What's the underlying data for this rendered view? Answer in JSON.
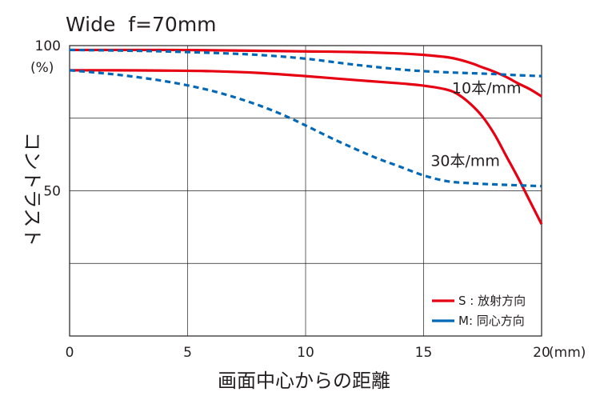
{
  "chart_data": {
    "type": "line",
    "title": "Wide  f=70mm",
    "xlabel": "画面中心からの距離",
    "ylabel": "コントラスト",
    "x_unit": "(mm)",
    "y_unit": "(%)",
    "xlim": [
      0,
      20
    ],
    "ylim": [
      0,
      100
    ],
    "x_ticks": [
      0,
      5,
      10,
      15,
      20
    ],
    "y_tick_labels": [
      {
        "value": 100,
        "label": "100"
      },
      {
        "value": 50,
        "label": "50"
      }
    ],
    "grid": true,
    "legend": {
      "placement": "bottom-right",
      "entries": [
        {
          "label": "S : 放射方向",
          "color": "#e60012",
          "style": "solid"
        },
        {
          "label": "M: 同心方向",
          "color": "#0068b7",
          "style": "solid"
        }
      ]
    },
    "annotations": [
      {
        "text": "10本/mm",
        "x": 16.2,
        "y": 85.5
      },
      {
        "text": "30本/mm",
        "x": 15.3,
        "y": 60.5
      }
    ],
    "series": [
      {
        "type": "S",
        "frequency": "10本/mm",
        "color": "#e60012",
        "style": "solid",
        "x": [
          0,
          2,
          4,
          6,
          8,
          10,
          12,
          14,
          15,
          16,
          16.5,
          17,
          17.5,
          18,
          18.5,
          19,
          19.5,
          20
        ],
        "y": [
          98.5,
          98.5,
          98.5,
          98.4,
          98.2,
          98.0,
          97.8,
          97.3,
          96.8,
          96.0,
          95.2,
          94.0,
          92.5,
          91.0,
          89.2,
          87.0,
          85.0,
          82.5
        ]
      },
      {
        "type": "M",
        "frequency": "10本/mm",
        "color": "#0068b7",
        "style": "dashed",
        "x": [
          0,
          2,
          4,
          6,
          8,
          10,
          12,
          14,
          15,
          16,
          17,
          18,
          19,
          20
        ],
        "y": [
          98.5,
          98.3,
          98.0,
          97.5,
          96.8,
          95.5,
          93.5,
          91.8,
          91.2,
          90.8,
          90.5,
          90.2,
          89.8,
          89.5
        ]
      },
      {
        "type": "S",
        "frequency": "30本/mm",
        "color": "#e60012",
        "style": "solid",
        "x": [
          0,
          2,
          4,
          6,
          8,
          10,
          12,
          14,
          15,
          16,
          16.5,
          17,
          17.5,
          18,
          18.5,
          19,
          19.5,
          20
        ],
        "y": [
          91.5,
          91.5,
          91.4,
          91.2,
          90.6,
          89.5,
          88.2,
          87.0,
          86.2,
          84.8,
          83.0,
          79.8,
          75.5,
          69.5,
          62.0,
          54.5,
          46.5,
          38.5
        ]
      },
      {
        "type": "M",
        "frequency": "30本/mm",
        "color": "#0068b7",
        "style": "dashed",
        "x": [
          0,
          1,
          2,
          3,
          4,
          5,
          6,
          7,
          8,
          9,
          10,
          11,
          12,
          13,
          14,
          15,
          16,
          17,
          18,
          19,
          20
        ],
        "y": [
          91.5,
          90.8,
          90.0,
          89.0,
          87.8,
          86.3,
          84.5,
          82.2,
          79.5,
          76.3,
          72.5,
          68.5,
          64.8,
          61.3,
          58.3,
          55.3,
          53.3,
          52.6,
          52.2,
          51.9,
          51.6
        ]
      }
    ]
  }
}
